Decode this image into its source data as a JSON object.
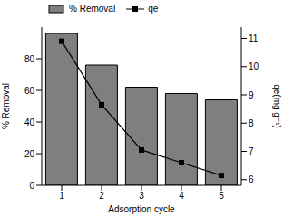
{
  "chart_data": {
    "type": "bar",
    "x_label": "Adsorption cycle",
    "categories": [
      "1",
      "2",
      "3",
      "4",
      "5"
    ],
    "series": [
      {
        "name": "% Removal",
        "type": "bar",
        "color": "#7f7f7f",
        "values": [
          96,
          76,
          62,
          58,
          54
        ]
      },
      {
        "name": "qe",
        "type": "line",
        "axis": "y2",
        "color": "#000000",
        "marker": "square",
        "line_style": "solid",
        "values": [
          10.9,
          8.65,
          7.05,
          6.6,
          6.15
        ]
      }
    ],
    "y_label": "% Removal",
    "y2_label": "qe(mg g⁻¹)",
    "ylim": [
      0,
      100
    ],
    "yticks": [
      0,
      20,
      40,
      60,
      80
    ],
    "y2lim": [
      5.8,
      11.4
    ],
    "y2ticks": [
      6,
      7,
      8,
      9,
      10,
      11
    ],
    "grid": false,
    "legend": "upper left"
  }
}
